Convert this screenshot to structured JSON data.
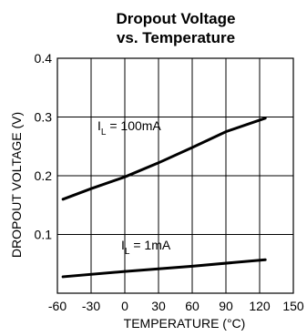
{
  "chart_data": {
    "type": "line",
    "title": [
      "Dropout Voltage",
      "vs. Temperature"
    ],
    "xlabel": "TEMPERATURE (°C)",
    "ylabel": "DROPOUT VOLTAGE (V)",
    "xlim": [
      -60,
      150
    ],
    "ylim": [
      0,
      0.4
    ],
    "xticks": [
      -60,
      -30,
      0,
      30,
      60,
      90,
      120,
      150
    ],
    "yticks": [
      0.1,
      0.2,
      0.3,
      0.4
    ],
    "xtick_labels": [
      "-60",
      "-30",
      "0",
      "30",
      "60",
      "90",
      "120",
      "150"
    ],
    "ytick_labels": [
      "0.1",
      "0.2",
      "0.3",
      "0.4"
    ],
    "grid": true,
    "series": [
      {
        "label_main": "I",
        "label_sub": "L",
        "label_rest": " = 100mA",
        "x": [
          -55,
          -30,
          0,
          30,
          60,
          90,
          125
        ],
        "y": [
          0.16,
          0.178,
          0.198,
          0.222,
          0.248,
          0.275,
          0.298
        ]
      },
      {
        "label_main": "I",
        "label_sub": "L",
        "label_rest": " = 1mA",
        "x": [
          -55,
          0,
          60,
          125
        ],
        "y": [
          0.028,
          0.037,
          0.046,
          0.057
        ]
      }
    ]
  }
}
